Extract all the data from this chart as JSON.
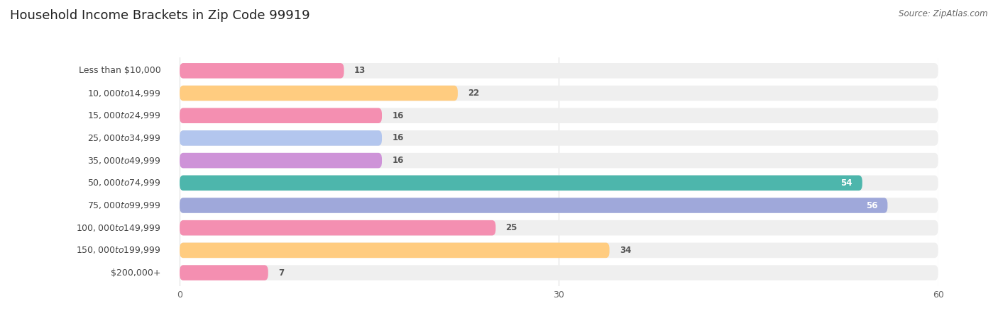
{
  "title": "Household Income Brackets in Zip Code 99919",
  "source": "Source: ZipAtlas.com",
  "categories": [
    "Less than $10,000",
    "$10,000 to $14,999",
    "$15,000 to $24,999",
    "$25,000 to $34,999",
    "$35,000 to $49,999",
    "$50,000 to $74,999",
    "$75,000 to $99,999",
    "$100,000 to $149,999",
    "$150,000 to $199,999",
    "$200,000+"
  ],
  "values": [
    13,
    22,
    16,
    16,
    16,
    54,
    56,
    25,
    34,
    7
  ],
  "bar_colors": [
    "#f48fb1",
    "#ffcc80",
    "#f48fb1",
    "#b3c6ee",
    "#ce93d8",
    "#4db6ac",
    "#9fa8da",
    "#f48fb1",
    "#ffcc80",
    "#f48fb1"
  ],
  "xlim": [
    0,
    60
  ],
  "xticks": [
    0,
    30,
    60
  ],
  "background_color": "#ffffff",
  "bar_bg_color": "#efefef",
  "title_fontsize": 13,
  "label_fontsize": 9,
  "value_fontsize": 8.5,
  "source_fontsize": 8.5,
  "bar_height": 0.68,
  "value_label_color_inside": "#ffffff",
  "value_label_color_outside": "#555555",
  "grid_color": "#dddddd",
  "label_text_color": "#444444"
}
